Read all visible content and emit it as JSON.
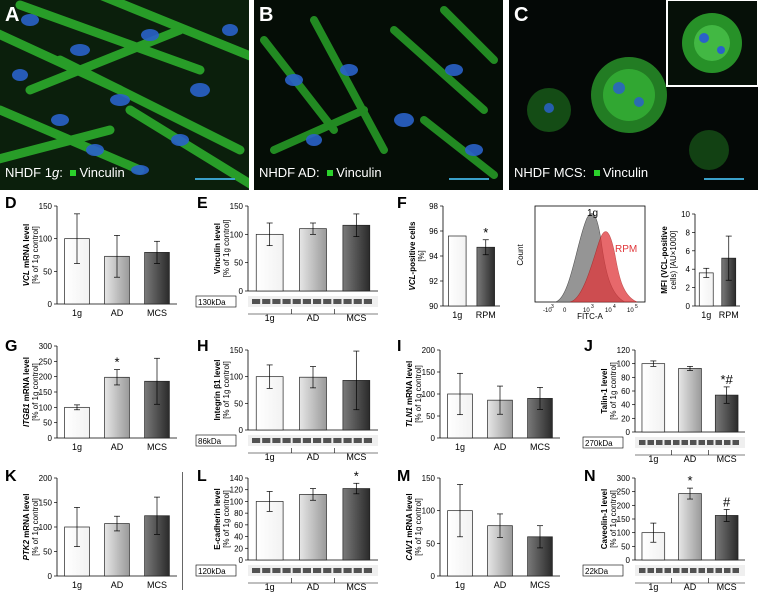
{
  "micrographs": [
    {
      "letter": "A",
      "caption_cell": "NHDF 1",
      "caption_g": "g",
      "caption_rest": ":",
      "marker": "Vinculin"
    },
    {
      "letter": "B",
      "caption_cell": "NHDF AD:",
      "caption_g": "",
      "caption_rest": "",
      "marker": "Vinculin"
    },
    {
      "letter": "C",
      "caption_cell": "NHDF MCS:",
      "caption_g": "",
      "caption_rest": "",
      "marker": "Vinculin"
    }
  ],
  "colors": {
    "green": "#2bd12b",
    "nucleus": "#2a62c9",
    "red": "#e0363a",
    "gray_fill": "#8a8a8a"
  },
  "flow": {
    "xlabel": "FITC-A",
    "ylabel": "Count",
    "label_1g": "1g",
    "label_rpm": "RPM",
    "ticks": [
      "-10",
      "0",
      "10",
      "10",
      "10"
    ],
    "tick_exp": [
      "3",
      "",
      "3",
      "4",
      "5"
    ]
  },
  "chart_data": [
    {
      "type": "bar",
      "panel": "D",
      "ylabel_italic": "VCL",
      "ylabel": " mRNA level",
      "ylabel2": "[% of 1g control]",
      "categories": [
        "1g",
        "AD",
        "MCS"
      ],
      "values": [
        100,
        73,
        79
      ],
      "errors": [
        38,
        32,
        17
      ],
      "ylim": [
        0,
        150
      ],
      "yticks": [
        0,
        50,
        100,
        150
      ],
      "annotations": [
        "",
        "",
        ""
      ]
    },
    {
      "type": "bar",
      "panel": "E",
      "ylabel": "Vinculin level",
      "ylabel2": "[% of 1g control]",
      "categories": [
        "1g",
        "AD",
        "MCS"
      ],
      "values": [
        100,
        110,
        116
      ],
      "errors": [
        20,
        10,
        20
      ],
      "ylim": [
        0,
        150
      ],
      "yticks": [
        0,
        50,
        100,
        150
      ],
      "annotations": [
        "",
        "",
        ""
      ],
      "blot": "130kDa"
    },
    {
      "type": "bar",
      "panel": "F1",
      "ylabel_italic": "VCL",
      "ylabel": "-positive cells",
      "ylabel2": "[%]",
      "categories": [
        "1g",
        "RPM"
      ],
      "values": [
        95.6,
        94.7
      ],
      "errors": [
        0,
        0.6
      ],
      "ylim": [
        90,
        98
      ],
      "yticks": [
        90,
        92,
        94,
        96,
        98
      ],
      "annotations": [
        "",
        "*"
      ]
    },
    {
      "type": "bar",
      "panel": "F2",
      "ylabel": "MFI (VCL-positive",
      "ylabel2": "cells) [AU×1000]",
      "categories": [
        "1g",
        "RPM"
      ],
      "values": [
        3.6,
        5.2
      ],
      "errors": [
        0.5,
        2.4
      ],
      "ylim": [
        0,
        10
      ],
      "yticks": [
        0,
        2,
        4,
        6,
        8,
        10
      ],
      "annotations": [
        "",
        ""
      ]
    },
    {
      "type": "bar",
      "panel": "G",
      "ylabel_italic": "ITGB1",
      "ylabel": " mRNA level",
      "ylabel2": "[% of 1g control]",
      "categories": [
        "1g",
        "AD",
        "MCS"
      ],
      "values": [
        100,
        198,
        185
      ],
      "errors": [
        8,
        25,
        75
      ],
      "ylim": [
        0,
        300
      ],
      "yticks": [
        0,
        50,
        100,
        150,
        200,
        250,
        300
      ],
      "annotations": [
        "",
        "*",
        ""
      ]
    },
    {
      "type": "bar",
      "panel": "H",
      "ylabel": "Integrin β1 level",
      "ylabel2": "[% of 1g control]",
      "categories": [
        "1g",
        "AD",
        "MCS"
      ],
      "values": [
        100,
        99,
        93
      ],
      "errors": [
        22,
        20,
        55
      ],
      "ylim": [
        0,
        150
      ],
      "yticks": [
        0,
        50,
        100,
        150
      ],
      "annotations": [
        "",
        "",
        ""
      ],
      "blot": "86kDa"
    },
    {
      "type": "bar",
      "panel": "I",
      "ylabel_italic": "TLN1",
      "ylabel": " mRNA level",
      "ylabel2": "[% of 1g control]",
      "categories": [
        "1g",
        "AD",
        "MCS"
      ],
      "values": [
        100,
        86,
        90
      ],
      "errors": [
        47,
        32,
        25
      ],
      "ylim": [
        0,
        200
      ],
      "yticks": [
        0,
        50,
        100,
        150,
        200
      ],
      "annotations": [
        "",
        "",
        ""
      ]
    },
    {
      "type": "bar",
      "panel": "J",
      "ylabel": "Talin-1 level",
      "ylabel2": "[% of 1g control]",
      "categories": [
        "1g",
        "AD",
        "MCS"
      ],
      "values": [
        100,
        93,
        54
      ],
      "errors": [
        4,
        3,
        12
      ],
      "ylim": [
        0,
        120
      ],
      "yticks": [
        0,
        20,
        40,
        60,
        80,
        100,
        120
      ],
      "annotations": [
        "",
        "",
        "*#"
      ],
      "blot": "270kDa"
    },
    {
      "type": "bar",
      "panel": "K",
      "ylabel_italic": "PTK2",
      "ylabel": " mRNA level",
      "ylabel2": "[% of 1g control]",
      "categories": [
        "1g",
        "AD",
        "MCS"
      ],
      "values": [
        100,
        107,
        123
      ],
      "errors": [
        40,
        15,
        38
      ],
      "ylim": [
        0,
        200
      ],
      "yticks": [
        0,
        50,
        100,
        150,
        200
      ],
      "annotations": [
        "",
        "",
        ""
      ]
    },
    {
      "type": "bar",
      "panel": "L",
      "ylabel": "E-cadherin level",
      "ylabel2": "[% of 1g control]",
      "categories": [
        "1g",
        "AD",
        "MCS"
      ],
      "values": [
        100,
        112,
        122
      ],
      "errors": [
        17,
        10,
        9
      ],
      "ylim": [
        0,
        140
      ],
      "yticks": [
        0,
        20,
        40,
        60,
        80,
        100,
        120,
        140
      ],
      "annotations": [
        "",
        "",
        "*"
      ],
      "blot": "120kDa"
    },
    {
      "type": "bar",
      "panel": "M",
      "ylabel_italic": "CAV1",
      "ylabel": " mRNA level",
      "ylabel2": "[% of 1g control]",
      "categories": [
        "1g",
        "AD",
        "MCS"
      ],
      "values": [
        100,
        77,
        60
      ],
      "errors": [
        40,
        18,
        17
      ],
      "ylim": [
        0,
        150
      ],
      "yticks": [
        0,
        50,
        100,
        150
      ],
      "annotations": [
        "",
        "",
        ""
      ]
    },
    {
      "type": "bar",
      "panel": "N",
      "ylabel": "Caveolin-1 level",
      "ylabel2": "[% of 1g control]",
      "categories": [
        "1g",
        "AD",
        "MCS"
      ],
      "values": [
        100,
        243,
        163
      ],
      "errors": [
        35,
        20,
        22
      ],
      "ylim": [
        0,
        300
      ],
      "yticks": [
        0,
        50,
        100,
        150,
        200,
        250,
        300
      ],
      "annotations": [
        "",
        "*",
        "#"
      ],
      "blot": "22kDa"
    }
  ]
}
